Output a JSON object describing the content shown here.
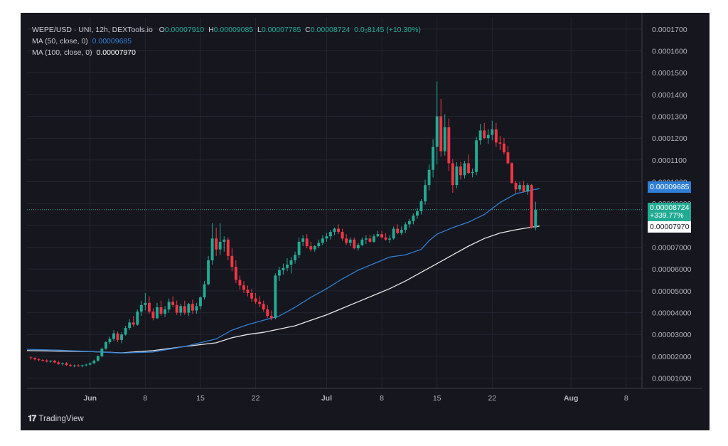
{
  "brand": {
    "name": "TradingView",
    "logo": "TV"
  },
  "legend": {
    "symbol": "WEPE/USD · UNI, 12h, DEXTools.io",
    "o_label": "O",
    "o_value": "0.00007910",
    "h_label": "H",
    "h_value": "0.00009085",
    "l_label": "L",
    "l_value": "0.00007785",
    "c_label": "C",
    "c_value": "0.00008724",
    "change": "0.0₅8145 (+10.30%)",
    "ma50_label": "MA (50, close, 0)",
    "ma50_value": "0.00009685",
    "ma100_label": "MA (100, close, 0)",
    "ma100_value": "0.00007970"
  },
  "price_tags": {
    "ma50": "0.00009685",
    "last_price": "0.00008724",
    "last_change": "+339.77%",
    "ma100": "0.00007970"
  },
  "colors": {
    "background": "#16161e",
    "up": "#22ab94",
    "down": "#f23645",
    "ma50": "#2f7fd6",
    "ma100": "#e8e8e8",
    "text": "#b2b5be",
    "grid": "#232632"
  },
  "chart_data": {
    "type": "candlestick",
    "x_axis": {
      "tick_labels": [
        "Jun",
        "8",
        "15",
        "22",
        "Jul",
        "8",
        "15",
        "22",
        "Aug",
        "8"
      ],
      "tick_days": [
        0,
        7,
        14,
        21,
        30,
        37,
        44,
        51,
        61,
        68
      ]
    },
    "y_axis": {
      "tick_labels": [
        "0.0001700",
        "0.0001600",
        "0.0001500",
        "0.0001400",
        "0.0001300",
        "0.0001200",
        "0.0001100",
        "0.0001000",
        "0.00009000",
        "0.00008000",
        "0.00007000",
        "0.00006000",
        "0.00005000",
        "0.00004000",
        "0.00003000",
        "0.00002000",
        "0.00001000"
      ],
      "tick_values": [
        0.00017,
        0.00016,
        0.00015,
        0.00014,
        0.00013,
        0.00012,
        0.00011,
        0.0001,
        9e-05,
        8e-05,
        7e-05,
        6e-05,
        5e-05,
        4e-05,
        3e-05,
        2e-05,
        1e-05
      ],
      "ylim": [
        5.3e-06,
        0.0001755
      ]
    },
    "x_range_days": [
      -8,
      70
    ],
    "last_price_line": 8.724e-05,
    "candles": [
      [
        -7.5,
        1.95e-05,
        2e-05,
        1.85e-05,
        1.92e-05
      ],
      [
        -7,
        1.92e-05,
        1.96e-05,
        1.82e-05,
        1.86e-05
      ],
      [
        -6.5,
        1.86e-05,
        1.92e-05,
        1.78e-05,
        1.83e-05
      ],
      [
        -6,
        1.83e-05,
        1.88e-05,
        1.76e-05,
        1.81e-05
      ],
      [
        -5.5,
        1.81e-05,
        1.86e-05,
        1.72e-05,
        1.76e-05
      ],
      [
        -5,
        1.76e-05,
        1.82e-05,
        1.71e-05,
        1.8e-05
      ],
      [
        -4.5,
        1.8e-05,
        1.84e-05,
        1.68e-05,
        1.72e-05
      ],
      [
        -4,
        1.72e-05,
        1.78e-05,
        1.62e-05,
        1.65e-05
      ],
      [
        -3.5,
        1.65e-05,
        1.72e-05,
        1.58e-05,
        1.68e-05
      ],
      [
        -3,
        1.68e-05,
        1.73e-05,
        1.56e-05,
        1.6e-05
      ],
      [
        -2.5,
        1.6e-05,
        1.66e-05,
        1.52e-05,
        1.56e-05
      ],
      [
        -2,
        1.56e-05,
        1.62e-05,
        1.5e-05,
        1.58e-05
      ],
      [
        -1.5,
        1.58e-05,
        1.64e-05,
        1.51e-05,
        1.55e-05
      ],
      [
        -1,
        1.55e-05,
        1.62e-05,
        1.5e-05,
        1.59e-05
      ],
      [
        -0.5,
        1.59e-05,
        1.66e-05,
        1.54e-05,
        1.62e-05
      ],
      [
        0,
        1.62e-05,
        1.72e-05,
        1.58e-05,
        1.68e-05
      ],
      [
        0.5,
        1.68e-05,
        1.85e-05,
        1.65e-05,
        1.8e-05
      ],
      [
        1,
        1.8e-05,
        2.05e-05,
        1.75e-05,
        2e-05
      ],
      [
        1.5,
        2e-05,
        2.4e-05,
        1.95e-05,
        2.35e-05
      ],
      [
        2,
        2.35e-05,
        2.7e-05,
        2.3e-05,
        2.65e-05
      ],
      [
        2.5,
        2.65e-05,
        2.9e-05,
        2.55e-05,
        2.8e-05
      ],
      [
        3,
        2.8e-05,
        3.2e-05,
        2.7e-05,
        3.05e-05
      ],
      [
        3.5,
        3.05e-05,
        3.15e-05,
        2.65e-05,
        2.75e-05
      ],
      [
        4,
        2.75e-05,
        3.1e-05,
        2.6e-05,
        3e-05
      ],
      [
        4.5,
        3e-05,
        3.4e-05,
        2.95e-05,
        3.3e-05
      ],
      [
        5,
        3.3e-05,
        3.7e-05,
        3.2e-05,
        3.55e-05
      ],
      [
        5.5,
        3.55e-05,
        3.85e-05,
        3.35e-05,
        3.45e-05
      ],
      [
        6,
        3.45e-05,
        4.15e-05,
        3.4e-05,
        4.05e-05
      ],
      [
        6.5,
        4.05e-05,
        4.55e-05,
        3.85e-05,
        4.35e-05
      ],
      [
        7,
        4.35e-05,
        4.9e-05,
        4.1e-05,
        4.45e-05
      ],
      [
        7.5,
        4.45e-05,
        4.75e-05,
        3.95e-05,
        4.05e-05
      ],
      [
        8,
        4.05e-05,
        4.2e-05,
        3.65e-05,
        3.75e-05
      ],
      [
        8.5,
        3.75e-05,
        4.45e-05,
        3.7e-05,
        4.25e-05
      ],
      [
        9,
        4.25e-05,
        4.55e-05,
        3.85e-05,
        3.95e-05
      ],
      [
        9.5,
        3.95e-05,
        4.3e-05,
        3.8e-05,
        4.15e-05
      ],
      [
        10,
        4.15e-05,
        4.65e-05,
        4e-05,
        4.5e-05
      ],
      [
        10.5,
        4.5e-05,
        4.75e-05,
        4.25e-05,
        4.35e-05
      ],
      [
        11,
        4.35e-05,
        4.55e-05,
        3.9e-05,
        4e-05
      ],
      [
        11.5,
        4e-05,
        4.4e-05,
        3.85e-05,
        4.3e-05
      ],
      [
        12,
        4.3e-05,
        4.55e-05,
        3.9e-05,
        4e-05
      ],
      [
        12.5,
        4e-05,
        4.45e-05,
        3.85e-05,
        4.4e-05
      ],
      [
        13,
        4.4e-05,
        4.6e-05,
        3.95e-05,
        4.1e-05
      ],
      [
        13.5,
        4.1e-05,
        4.45e-05,
        3.95e-05,
        4.3e-05
      ],
      [
        14,
        4.3e-05,
        4.75e-05,
        4.15e-05,
        4.7e-05
      ],
      [
        14.5,
        4.7e-05,
        5.45e-05,
        4.6e-05,
        5.3e-05
      ],
      [
        15,
        5.3e-05,
        6.6e-05,
        5.25e-05,
        6.4e-05
      ],
      [
        15.5,
        6.4e-05,
        8.1e-05,
        6.2e-05,
        7.4e-05
      ],
      [
        16,
        7.4e-05,
        7.9e-05,
        6.6e-05,
        6.9e-05
      ],
      [
        16.5,
        6.9e-05,
        8.1e-05,
        6.65e-05,
        7.25e-05
      ],
      [
        17,
        7.25e-05,
        7.5e-05,
        6.8e-05,
        7.35e-05
      ],
      [
        17.5,
        7.35e-05,
        7.45e-05,
        6.4e-05,
        6.6e-05
      ],
      [
        18,
        6.6e-05,
        6.95e-05,
        5.9e-05,
        6.1e-05
      ],
      [
        18.5,
        6.1e-05,
        6.4e-05,
        5.35e-05,
        5.5e-05
      ],
      [
        19,
        5.5e-05,
        5.7e-05,
        5.05e-05,
        5.25e-05
      ],
      [
        19.5,
        5.25e-05,
        5.45e-05,
        4.9e-05,
        5.05e-05
      ],
      [
        20,
        5.05e-05,
        5.25e-05,
        4.75e-05,
        4.9e-05
      ],
      [
        20.5,
        4.9e-05,
        5.1e-05,
        4.5e-05,
        4.65e-05
      ],
      [
        21,
        4.65e-05,
        4.9e-05,
        4.4e-05,
        4.5e-05
      ],
      [
        21.5,
        4.5e-05,
        4.75e-05,
        4.25e-05,
        4.4e-05
      ],
      [
        22,
        4.4e-05,
        4.55e-05,
        4.05e-05,
        4.15e-05
      ],
      [
        22.5,
        4.15e-05,
        4.35e-05,
        3.75e-05,
        3.85e-05
      ],
      [
        23,
        3.85e-05,
        4.1e-05,
        3.65e-05,
        3.75e-05
      ],
      [
        23.5,
        3.75e-05,
        5.8e-05,
        3.7e-05,
        5.7e-05
      ],
      [
        24,
        5.7e-05,
        6.1e-05,
        5.45e-05,
        5.95e-05
      ],
      [
        24.5,
        5.95e-05,
        6.25e-05,
        5.75e-05,
        6.05e-05
      ],
      [
        25,
        6.05e-05,
        6.5e-05,
        5.9e-05,
        6.2e-05
      ],
      [
        25.5,
        6.2e-05,
        6.55e-05,
        5.8e-05,
        6.4e-05
      ],
      [
        26,
        6.4e-05,
        6.8e-05,
        6.25e-05,
        6.65e-05
      ],
      [
        26.5,
        6.65e-05,
        7.45e-05,
        6.5e-05,
        7.25e-05
      ],
      [
        27,
        7.25e-05,
        7.55e-05,
        7.05e-05,
        7.4e-05
      ],
      [
        27.5,
        7.4e-05,
        7.6e-05,
        6.95e-05,
        7.05e-05
      ],
      [
        28,
        7.05e-05,
        7.25e-05,
        6.8e-05,
        6.9e-05
      ],
      [
        28.5,
        6.9e-05,
        7.1e-05,
        6.8e-05,
        7.05e-05
      ],
      [
        29,
        7.05e-05,
        7.35e-05,
        6.95e-05,
        7.2e-05
      ],
      [
        29.5,
        7.2e-05,
        7.55e-05,
        7.1e-05,
        7.4e-05
      ],
      [
        30,
        7.4e-05,
        7.65e-05,
        7.25e-05,
        7.5e-05
      ],
      [
        30.5,
        7.5e-05,
        7.8e-05,
        7.35e-05,
        7.7e-05
      ],
      [
        31,
        7.7e-05,
        7.9e-05,
        7.55e-05,
        7.85e-05
      ],
      [
        31.5,
        7.85e-05,
        8.05e-05,
        7.6e-05,
        7.7e-05
      ],
      [
        32,
        7.7e-05,
        7.85e-05,
        7.3e-05,
        7.4e-05
      ],
      [
        32.5,
        7.4e-05,
        7.6e-05,
        7.1e-05,
        7.2e-05
      ],
      [
        33,
        7.2e-05,
        7.45e-05,
        7.05e-05,
        7.35e-05
      ],
      [
        33.5,
        7.35e-05,
        7.45e-05,
        6.9e-05,
        6.95e-05
      ],
      [
        34,
        6.95e-05,
        7.2e-05,
        6.85e-05,
        7.1e-05
      ],
      [
        34.5,
        7.1e-05,
        7.45e-05,
        7.05e-05,
        7.35e-05
      ],
      [
        35,
        7.35e-05,
        7.55e-05,
        7.15e-05,
        7.4e-05
      ],
      [
        35.5,
        7.4e-05,
        7.55e-05,
        7.2e-05,
        7.25e-05
      ],
      [
        36,
        7.25e-05,
        7.6e-05,
        7.2e-05,
        7.5e-05
      ],
      [
        36.5,
        7.5e-05,
        7.75e-05,
        7.45e-05,
        7.6e-05
      ],
      [
        37,
        7.6e-05,
        7.75e-05,
        7.4e-05,
        7.45e-05
      ],
      [
        37.5,
        7.45e-05,
        7.65e-05,
        7.3e-05,
        7.35e-05
      ],
      [
        38,
        7.35e-05,
        7.55e-05,
        7.2e-05,
        7.4e-05
      ],
      [
        38.5,
        7.4e-05,
        7.95e-05,
        7.35e-05,
        7.85e-05
      ],
      [
        39,
        7.85e-05,
        8.05e-05,
        7.6e-05,
        7.65e-05
      ],
      [
        39.5,
        7.65e-05,
        7.95e-05,
        7.55e-05,
        7.8e-05
      ],
      [
        40,
        7.8e-05,
        8.15e-05,
        7.65e-05,
        8.05e-05
      ],
      [
        40.5,
        8.05e-05,
        8.3e-05,
        7.9e-05,
        8.2e-05
      ],
      [
        41,
        8.2e-05,
        8.55e-05,
        8.05e-05,
        8.45e-05
      ],
      [
        41.5,
        8.45e-05,
        8.8e-05,
        8.3e-05,
        8.65e-05
      ],
      [
        42,
        8.65e-05,
        9.2e-05,
        8.5e-05,
        9.1e-05
      ],
      [
        42.5,
        9.1e-05,
        0.000101,
        8.95e-05,
        9.85e-05
      ],
      [
        43,
        9.85e-05,
        0.000108,
        9.6e-05,
        0.0001055
      ],
      [
        43.5,
        0.0001055,
        0.0001195,
        0.000102,
        0.000116
      ],
      [
        44,
        0.000116,
        0.000146,
        0.000108,
        0.00013
      ],
      [
        44.5,
        0.00013,
        0.000138,
        0.0001115,
        0.000114
      ],
      [
        45,
        0.000114,
        0.000131,
        0.000112,
        0.000125
      ],
      [
        45.5,
        0.000125,
        0.000129,
        0.000105,
        0.0001085
      ],
      [
        46,
        0.0001085,
        0.0001105,
        9.5e-05,
        9.85e-05
      ],
      [
        46.5,
        9.85e-05,
        0.000109,
        9.7e-05,
        0.000107
      ],
      [
        47,
        0.000107,
        0.000109,
        0.000101,
        0.000103
      ],
      [
        47.5,
        0.000103,
        0.0001095,
        0.0001015,
        0.0001085
      ],
      [
        48,
        0.0001085,
        0.0001125,
        0.0001035,
        0.000104
      ],
      [
        48.5,
        0.000104,
        0.000106,
        0.000102,
        0.0001045
      ],
      [
        49,
        0.0001045,
        0.0001205,
        0.000103,
        0.000119
      ],
      [
        49.5,
        0.000119,
        0.0001265,
        0.000117,
        0.0001235
      ],
      [
        50,
        0.0001235,
        0.000127,
        0.0001195,
        0.00012
      ],
      [
        50.5,
        0.00012,
        0.000124,
        0.0001175,
        0.0001215
      ],
      [
        51,
        0.0001215,
        0.000128,
        0.000119,
        0.000124
      ],
      [
        51.5,
        0.000124,
        0.000127,
        0.000116,
        0.000118
      ],
      [
        52,
        0.000118,
        0.000121,
        0.0001145,
        0.0001175
      ],
      [
        52.5,
        0.0001175,
        0.00012,
        0.0001125,
        0.0001135
      ],
      [
        53,
        0.0001135,
        0.0001165,
        0.000108,
        0.0001085
      ],
      [
        53.5,
        0.0001085,
        0.000109,
        9.9e-05,
        9.95e-05
      ],
      [
        54,
        9.95e-05,
        0.0001005,
        9.5e-05,
        9.65e-05
      ],
      [
        54.5,
        9.65e-05,
        0.0001,
        9.55e-05,
        9.85e-05
      ],
      [
        55,
        9.85e-05,
        0.0001005,
        9.5e-05,
        9.55e-05
      ],
      [
        55.5,
        9.55e-05,
        9.95e-05,
        9.4e-05,
        9.85e-05
      ],
      [
        56,
        9.85e-05,
        9.9e-05,
        7.85e-05,
        7.9e-05
      ],
      [
        56.5,
        7.9e-05,
        9.085e-05,
        7.785e-05,
        8.724e-05
      ]
    ],
    "ma50_series": [
      [
        -8,
        2.32e-05
      ],
      [
        -4,
        2.28e-05
      ],
      [
        0,
        2.22e-05
      ],
      [
        4,
        2.15e-05
      ],
      [
        8,
        2.2e-05
      ],
      [
        12,
        2.45e-05
      ],
      [
        16,
        2.8e-05
      ],
      [
        18,
        3.2e-05
      ],
      [
        20,
        3.45e-05
      ],
      [
        22,
        3.65e-05
      ],
      [
        24,
        3.85e-05
      ],
      [
        26,
        4.25e-05
      ],
      [
        28,
        4.7e-05
      ],
      [
        30,
        5.1e-05
      ],
      [
        32,
        5.55e-05
      ],
      [
        34,
        5.95e-05
      ],
      [
        36,
        6.25e-05
      ],
      [
        38,
        6.55e-05
      ],
      [
        40,
        6.65e-05
      ],
      [
        42,
        6.9e-05
      ],
      [
        43,
        7.3e-05
      ],
      [
        44,
        7.6e-05
      ],
      [
        46,
        7.9e-05
      ],
      [
        48,
        8.15e-05
      ],
      [
        50,
        8.5e-05
      ],
      [
        52,
        9.05e-05
      ],
      [
        54,
        9.45e-05
      ],
      [
        56,
        9.62e-05
      ],
      [
        57,
        9.685e-05
      ]
    ],
    "ma100_series": [
      [
        -8,
        2.26e-05
      ],
      [
        -4,
        2.24e-05
      ],
      [
        0,
        2.22e-05
      ],
      [
        4,
        2.16e-05
      ],
      [
        8,
        2.26e-05
      ],
      [
        12,
        2.45e-05
      ],
      [
        16,
        2.62e-05
      ],
      [
        18,
        2.85e-05
      ],
      [
        20,
        3e-05
      ],
      [
        22,
        3.1e-05
      ],
      [
        24,
        3.25e-05
      ],
      [
        26,
        3.4e-05
      ],
      [
        28,
        3.65e-05
      ],
      [
        30,
        3.9e-05
      ],
      [
        32,
        4.2e-05
      ],
      [
        34,
        4.5e-05
      ],
      [
        36,
        4.8e-05
      ],
      [
        38,
        5.1e-05
      ],
      [
        40,
        5.45e-05
      ],
      [
        42,
        5.85e-05
      ],
      [
        44,
        6.25e-05
      ],
      [
        46,
        6.65e-05
      ],
      [
        48,
        7.05e-05
      ],
      [
        50,
        7.4e-05
      ],
      [
        52,
        7.65e-05
      ],
      [
        54,
        7.8e-05
      ],
      [
        56,
        7.92e-05
      ],
      [
        57,
        7.97e-05
      ]
    ]
  }
}
